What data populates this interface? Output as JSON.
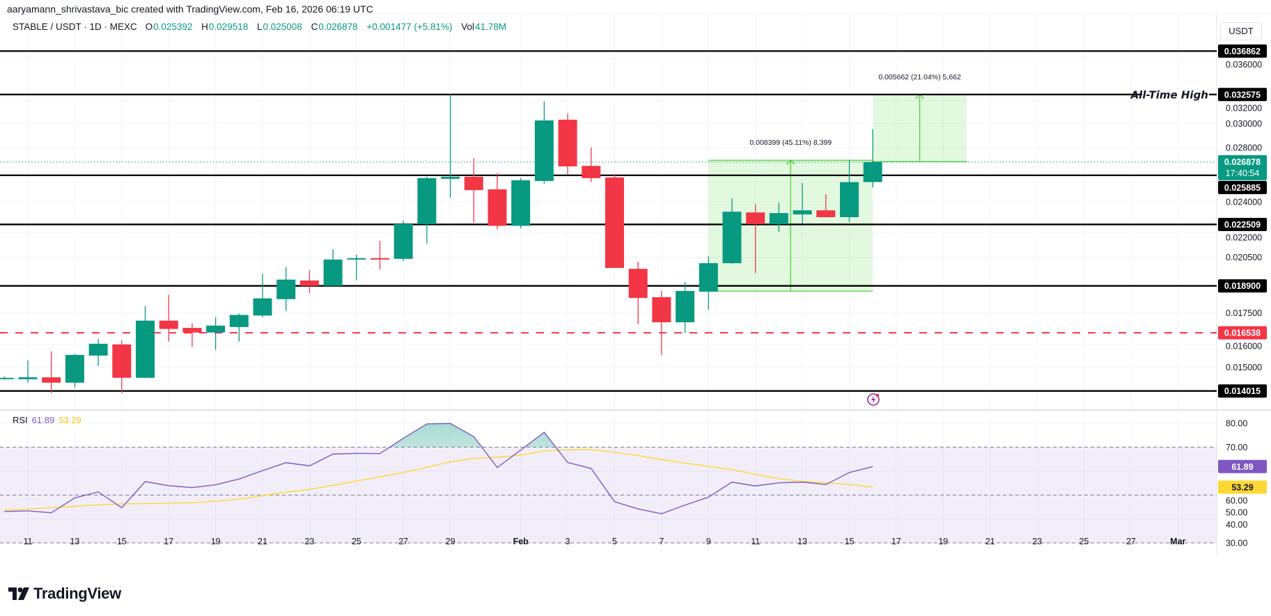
{
  "header": {
    "attribution": "aaryamann_shrivastava_bic created with TradingView.com, Feb 16, 2026 06:19 UTC",
    "symbol": "STABLE / USDT · 1D · MEXC",
    "ohlc": [
      {
        "k": "O",
        "v": "0.025392"
      },
      {
        "k": "H",
        "v": "0.029518"
      },
      {
        "k": "L",
        "v": "0.025008"
      },
      {
        "k": "C",
        "v": "0.026878"
      }
    ],
    "change": "+0.001477 (+5.81%)",
    "vol_label": "Vol",
    "vol_value": "41.78M"
  },
  "currency_button": "USDT",
  "logo_text": "TradingView",
  "colors": {
    "up": "#089981",
    "down": "#f23645",
    "rsi": "#7e57c2",
    "rsi_ma": "#fdd835",
    "level": "#000000",
    "support_dashed": "#f23645",
    "measure": "#4cd137"
  },
  "icons": {
    "alert": "lightning-bolt-icon",
    "logo": "tradingview-logo-icon"
  },
  "chart_data": {
    "type": "candlestick",
    "interval": "1D",
    "y_scale": "log",
    "grid": true,
    "x_ticks": [
      {
        "label": "11",
        "date": "2026-01-11"
      },
      {
        "label": "13",
        "date": "2026-01-13"
      },
      {
        "label": "15",
        "date": "2026-01-15"
      },
      {
        "label": "17",
        "date": "2026-01-17"
      },
      {
        "label": "19",
        "date": "2026-01-19"
      },
      {
        "label": "21",
        "date": "2026-01-21"
      },
      {
        "label": "23",
        "date": "2026-01-23"
      },
      {
        "label": "25",
        "date": "2026-01-25"
      },
      {
        "label": "27",
        "date": "2026-01-27"
      },
      {
        "label": "29",
        "date": "2026-01-29"
      },
      {
        "label": "Feb",
        "date": "2026-02-01"
      },
      {
        "label": "3",
        "date": "2026-02-03"
      },
      {
        "label": "5",
        "date": "2026-02-05"
      },
      {
        "label": "7",
        "date": "2026-02-07"
      },
      {
        "label": "9",
        "date": "2026-02-09"
      },
      {
        "label": "11",
        "date": "2026-02-11"
      },
      {
        "label": "13",
        "date": "2026-02-13"
      },
      {
        "label": "15",
        "date": "2026-02-15"
      },
      {
        "label": "17",
        "date": "2026-02-17"
      },
      {
        "label": "19",
        "date": "2026-02-19"
      },
      {
        "label": "21",
        "date": "2026-02-21"
      },
      {
        "label": "23",
        "date": "2026-02-23"
      },
      {
        "label": "25",
        "date": "2026-02-25"
      },
      {
        "label": "27",
        "date": "2026-02-27"
      },
      {
        "label": "Mar",
        "date": "2026-03-01"
      }
    ],
    "y_ticks": [
      "0.036000",
      "0.032000",
      "0.030000",
      "0.028000",
      "0.024000",
      "0.022000",
      "0.020500",
      "0.017500",
      "0.016000",
      "0.015000"
    ],
    "candles_columns": [
      "date",
      "open",
      "high",
      "low",
      "close"
    ],
    "candles": [
      [
        "2026-01-10",
        0.01452,
        0.0146,
        0.01448,
        0.01455
      ],
      [
        "2026-01-11",
        0.01449,
        0.01529,
        0.01435,
        0.01457
      ],
      [
        "2026-01-12",
        0.01457,
        0.01569,
        0.01393,
        0.01435
      ],
      [
        "2026-01-13",
        0.01435,
        0.01557,
        0.01415,
        0.01553
      ],
      [
        "2026-01-14",
        0.0155,
        0.01626,
        0.01505,
        0.01603
      ],
      [
        "2026-01-15",
        0.016,
        0.0162,
        0.01393,
        0.01455
      ],
      [
        "2026-01-16",
        0.01455,
        0.01784,
        0.01455,
        0.01712
      ],
      [
        "2026-01-17",
        0.01712,
        0.01842,
        0.01613,
        0.01672
      ],
      [
        "2026-01-18",
        0.01677,
        0.01699,
        0.01588,
        0.01655
      ],
      [
        "2026-01-19",
        0.01655,
        0.01729,
        0.01575,
        0.01688
      ],
      [
        "2026-01-20",
        0.01681,
        0.01747,
        0.01613,
        0.0174
      ],
      [
        "2026-01-21",
        0.01737,
        0.01955,
        0.01729,
        0.01824
      ],
      [
        "2026-01-22",
        0.0182,
        0.01994,
        0.0176,
        0.01924
      ],
      [
        "2026-01-23",
        0.01919,
        0.01977,
        0.01852,
        0.0189
      ],
      [
        "2026-01-24",
        0.0189,
        0.02098,
        0.0189,
        0.02037
      ],
      [
        "2026-01-25",
        0.02037,
        0.02066,
        0.01919,
        0.02045
      ],
      [
        "2026-01-26",
        0.02045,
        0.02148,
        0.0198,
        0.02041
      ],
      [
        "2026-01-27",
        0.02041,
        0.02276,
        0.02028,
        0.02253
      ],
      [
        "2026-01-28",
        0.02253,
        0.02578,
        0.02131,
        0.02568
      ],
      [
        "2026-01-29",
        0.02563,
        0.03257,
        0.02429,
        0.02578
      ],
      [
        "2026-01-30",
        0.02578,
        0.02719,
        0.02262,
        0.02482
      ],
      [
        "2026-01-31",
        0.02487,
        0.02604,
        0.02221,
        0.02242
      ],
      [
        "2026-02-01",
        0.02242,
        0.02568,
        0.02225,
        0.02552
      ],
      [
        "2026-02-02",
        0.02547,
        0.03195,
        0.02527,
        0.03026
      ],
      [
        "2026-02-03",
        0.03032,
        0.03086,
        0.02594,
        0.02655
      ],
      [
        "2026-02-04",
        0.02659,
        0.02802,
        0.02539,
        0.02568
      ],
      [
        "2026-02-05",
        0.02573,
        0.02598,
        0.01989,
        0.01989
      ],
      [
        "2026-02-06",
        0.01984,
        0.02024,
        0.01694,
        0.01826
      ],
      [
        "2026-02-07",
        0.0183,
        0.01863,
        0.01553,
        0.01704
      ],
      [
        "2026-02-08",
        0.01704,
        0.01911,
        0.01654,
        0.01863
      ],
      [
        "2026-02-09",
        0.01859,
        0.02056,
        0.01766,
        0.02016
      ],
      [
        "2026-02-10",
        0.02016,
        0.02424,
        0.02012,
        0.02334
      ],
      [
        "2026-02-11",
        0.02329,
        0.02385,
        0.01961,
        0.02253
      ],
      [
        "2026-02-12",
        0.02253,
        0.02395,
        0.02204,
        0.02325
      ],
      [
        "2026-02-13",
        0.02316,
        0.02532,
        0.02257,
        0.02343
      ],
      [
        "2026-02-14",
        0.02343,
        0.02453,
        0.02298,
        0.02298
      ],
      [
        "2026-02-15",
        0.02298,
        0.02704,
        0.02266,
        0.02539
      ],
      [
        "2026-02-16",
        0.025392,
        0.029518,
        0.025008,
        0.026878
      ]
    ],
    "levels": [
      {
        "price": "0.036862",
        "style": "solid",
        "color": "#000000"
      },
      {
        "price": "0.032575",
        "style": "solid",
        "color": "#000000",
        "label": "All-Time High"
      },
      {
        "price": "0.025885",
        "style": "solid",
        "color": "#000000"
      },
      {
        "price": "0.022509",
        "style": "solid",
        "color": "#000000"
      },
      {
        "price": "0.018900",
        "style": "solid",
        "color": "#000000"
      },
      {
        "price": "0.016538",
        "style": "dashed",
        "color": "#f23645"
      },
      {
        "price": "0.014015",
        "style": "solid",
        "color": "#000000"
      }
    ],
    "last_price": {
      "price": "0.026878",
      "countdown": "17:40:54",
      "color": "#089981"
    },
    "measures": [
      {
        "from": "2026-02-09",
        "to": "2026-02-16",
        "low": 0.018619,
        "high": 0.027018,
        "label": "0.008399 (45.11%) 8,399"
      },
      {
        "from": "2026-02-16",
        "to": "2026-02-20",
        "low": 0.026913,
        "high": 0.032575,
        "label": "0.005662 (21.04%) 5,662"
      }
    ],
    "rsi": {
      "title": "RSI",
      "value": "61.89",
      "ma_value": "53.29",
      "y_ticks": [
        "80.00",
        "70.00",
        "60.00",
        "50.00",
        "40.00",
        "30.00"
      ],
      "bands": [
        70,
        50,
        30
      ],
      "start_date": "2026-01-10",
      "values": [
        43.1,
        43.4,
        42.6,
        48.8,
        51.3,
        44.7,
        55.6,
        53.9,
        53.1,
        54.3,
        56.7,
        60.2,
        63.5,
        62.2,
        67.1,
        67.4,
        67.3,
        73.7,
        79.7,
        79.9,
        74.4,
        61.5,
        68.8,
        76.2,
        63.6,
        61.1,
        47.2,
        44.2,
        42.2,
        45.8,
        49.1,
        55.4,
        53.8,
        55.1,
        55.4,
        54.4,
        59.4,
        61.89
      ],
      "ma_values": [
        43.7,
        44.2,
        44.7,
        45.3,
        45.9,
        46.3,
        46.4,
        46.6,
        46.8,
        47.4,
        48.3,
        49.7,
        51.2,
        52.4,
        54.0,
        55.8,
        57.6,
        59.4,
        61.6,
        63.9,
        65.3,
        65.7,
        66.7,
        68.4,
        68.9,
        69.0,
        67.8,
        66.5,
        64.8,
        63.3,
        62.0,
        60.6,
        58.6,
        56.8,
        55.7,
        55.1,
        54.4,
        53.29
      ]
    }
  }
}
